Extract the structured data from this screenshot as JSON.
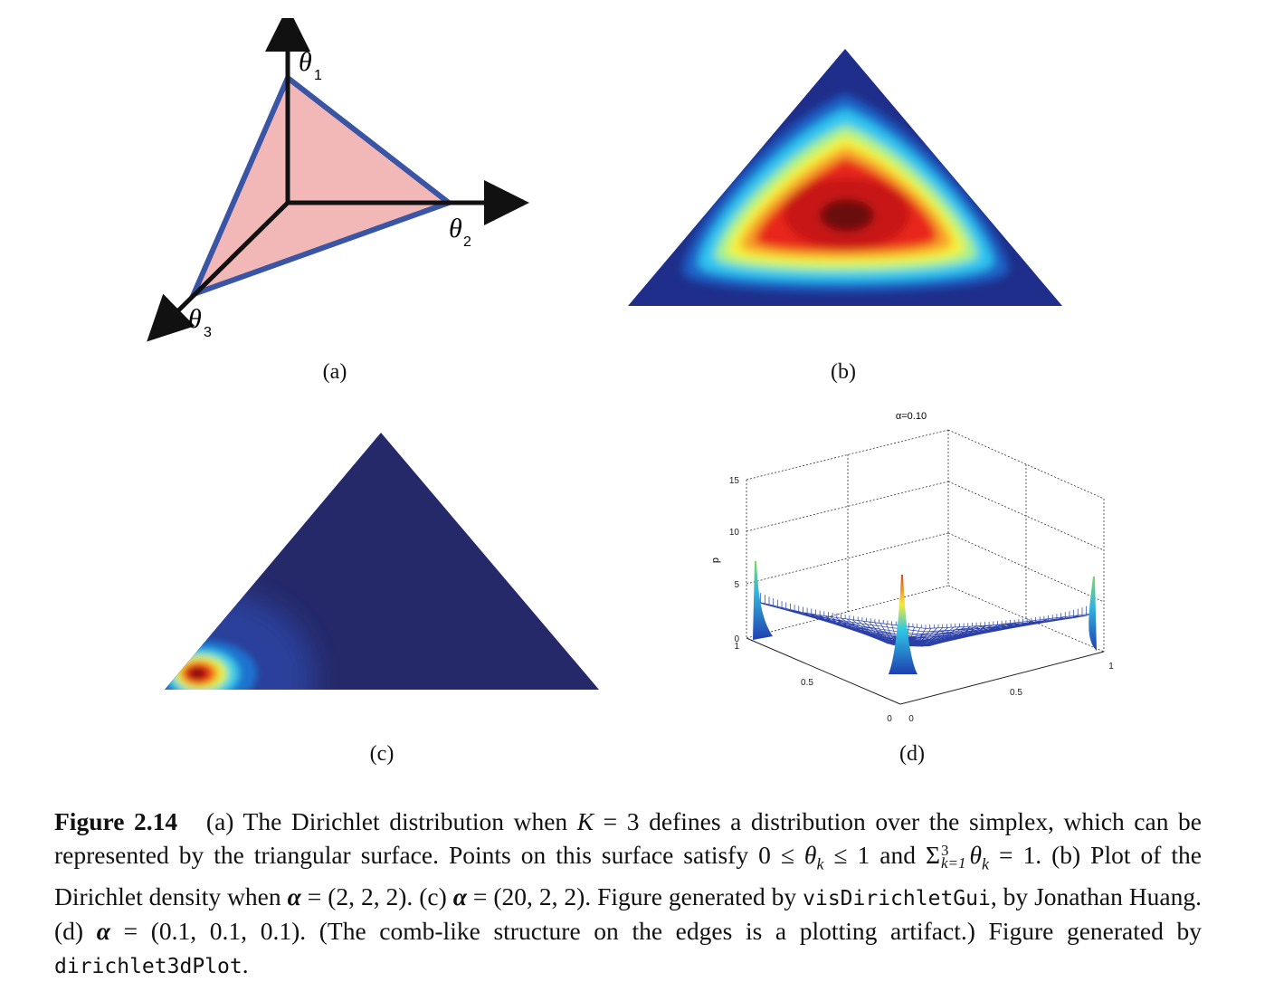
{
  "figure": {
    "panel_a": {
      "label": "(a)",
      "axes": [
        {
          "symbol": "θ",
          "sub": "1"
        },
        {
          "symbol": "θ",
          "sub": "2"
        },
        {
          "symbol": "θ",
          "sub": "3"
        }
      ],
      "colors": {
        "fill": "#f2b8b8",
        "edge": "#3a55a4",
        "axis": "#111111"
      }
    },
    "panel_b": {
      "label": "(b)",
      "alpha": "(2,2,2)"
    },
    "panel_c": {
      "label": "(c)",
      "alpha": "(20,2,2)"
    },
    "panel_d": {
      "label": "(d)",
      "title": "α=0.10",
      "zlabel": "p",
      "z_ticks": [
        "0",
        "5",
        "10",
        "15"
      ],
      "x_ticks": [
        "0",
        "0.5",
        "1"
      ],
      "y_ticks": [
        "0",
        "0.5",
        "1"
      ]
    }
  },
  "caption": {
    "figure_number": "Figure 2.14",
    "seg1": "(a) The Dirichlet distribution when ",
    "K": "K",
    "seg2": " = 3 defines a distribution over the simplex, which can be represented by the triangular surface. Points on this surface satisfy 0 ≤ ",
    "theta_k": "θ",
    "k": "k",
    "seg3": " ≤ 1 and ",
    "sum": "Σ",
    "sum_sup": "3",
    "sum_sub": "k=1",
    "seg4": " = 1. (b) Plot of the Dirichlet density when ",
    "alpha": "α",
    "seg5": " = (2, 2, 2). (c) ",
    "seg6": " = (20, 2, 2). Figure generated by ",
    "code1": "visDirichletGui",
    "seg7": ", by Jonathan Huang. (d) ",
    "seg8": " = (0.1, 0.1, 0.1). (The comb-like structure on the edges is a plotting artifact.) Figure generated by ",
    "code2": "dirichlet3dPlot",
    "seg9": "."
  }
}
